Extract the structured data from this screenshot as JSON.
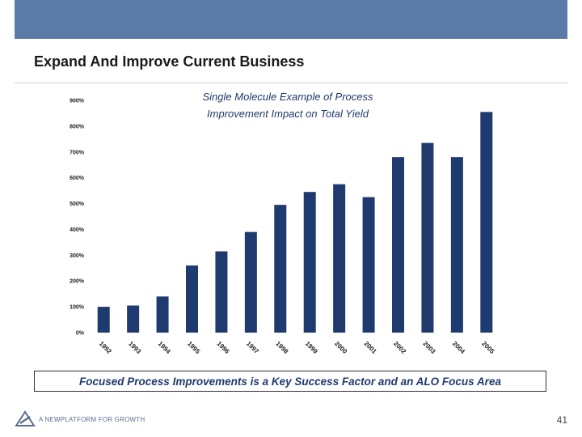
{
  "slide": {
    "title": "Expand And Improve Current Business",
    "callout": "Focused Process Improvements is a Key Success Factor and an ALO Focus Area",
    "footer_brand": "A NEWPLATFORM FOR GROWTH",
    "page_number": "41"
  },
  "colors": {
    "header_bar": "#5a7aa8",
    "bars": "#1f3a6e",
    "title_text": "#1f3a6e"
  },
  "chart_data": {
    "type": "bar",
    "title_lines": [
      "Single Molecule Example of Process",
      "Improvement Impact on Total Yield"
    ],
    "categories": [
      "1992",
      "1993",
      "1994",
      "1995",
      "1996",
      "1997",
      "1998",
      "1999",
      "2000",
      "2001",
      "2002",
      "2003",
      "2004",
      "2005"
    ],
    "values": [
      100,
      105,
      140,
      260,
      315,
      390,
      495,
      545,
      575,
      525,
      680,
      735,
      680,
      855
    ],
    "ylim": [
      0,
      900
    ],
    "yticks": [
      0,
      100,
      200,
      300,
      400,
      500,
      600,
      700,
      800,
      900
    ],
    "ytick_labels": [
      "0%",
      "100%",
      "200%",
      "300%",
      "400%",
      "500%",
      "600%",
      "700%",
      "800%",
      "900%"
    ],
    "grid": false,
    "legend": "none"
  }
}
